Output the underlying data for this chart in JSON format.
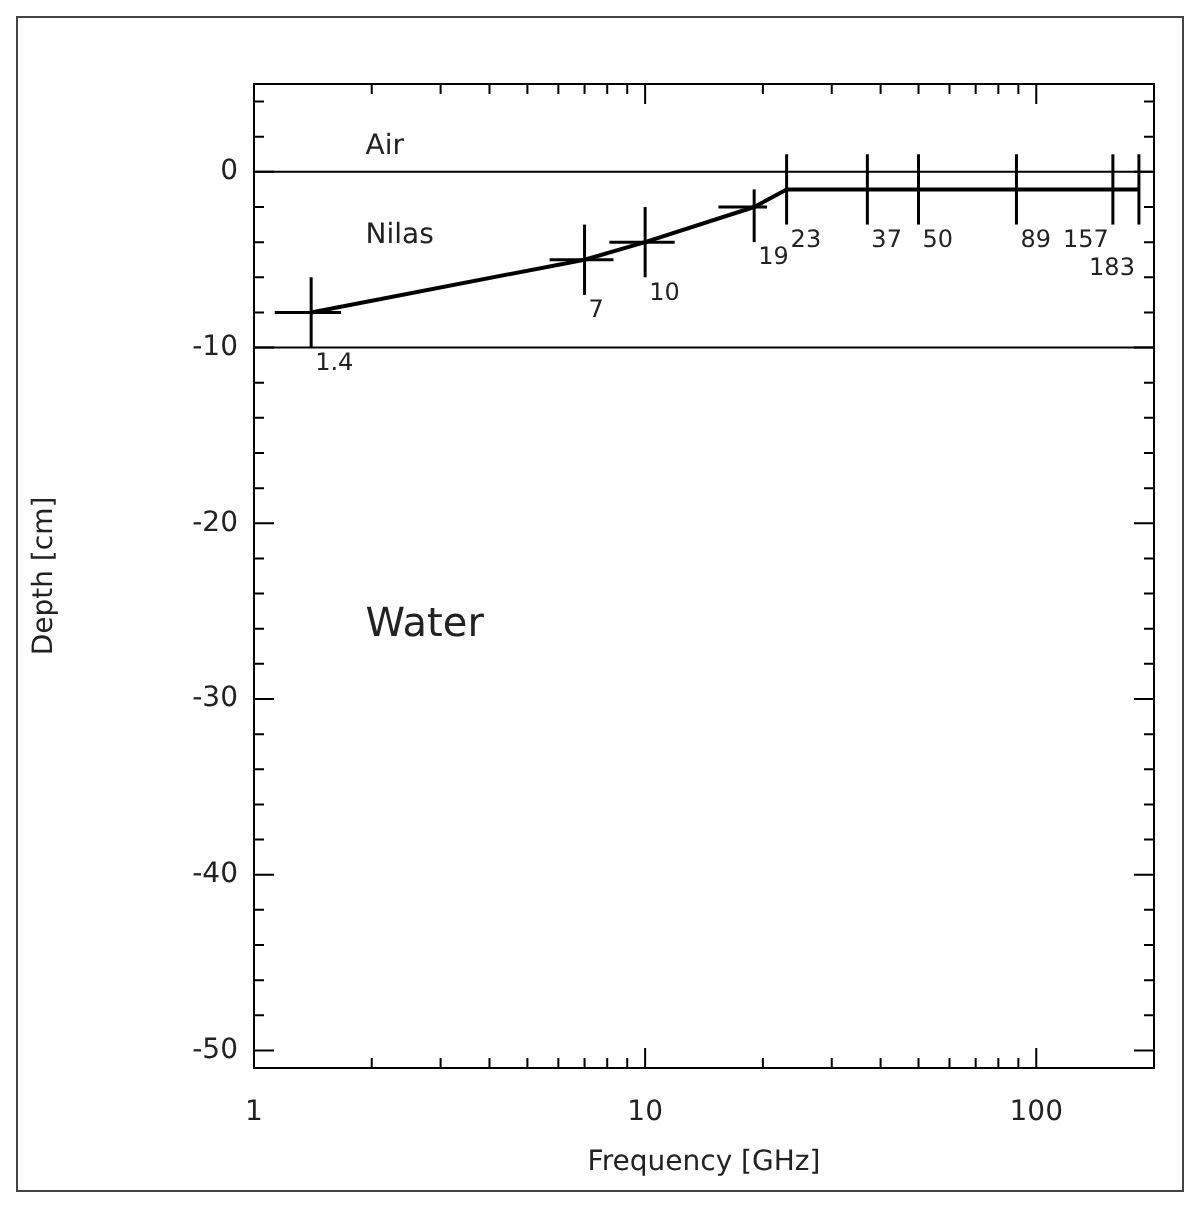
{
  "chart_data": {
    "type": "line",
    "xlabel": "Frequency [GHz]",
    "ylabel": "Depth [cm]",
    "log": "x",
    "grid": false,
    "legend": false,
    "marker": "none",
    "line_style": "solid",
    "x": [
      1.4,
      7,
      10,
      19,
      23,
      37,
      50,
      89,
      157,
      183
    ],
    "series": [
      {
        "color": "#000000",
        "values": [
          -8,
          -5,
          -4,
          -2,
          -1,
          -1,
          -1,
          -1,
          -1,
          -1
        ],
        "errors": [
          [
            -10,
            -6
          ],
          [
            -7,
            -3
          ],
          [
            -6,
            -2
          ],
          [
            -4,
            -1
          ],
          [
            -3,
            1
          ],
          [
            -3,
            1
          ],
          [
            -3,
            1
          ],
          [
            -3,
            1
          ],
          [
            -3,
            1
          ],
          [
            -3,
            1
          ]
        ],
        "xerrors": [
          [
            1.13,
            1.67
          ],
          [
            5.7,
            8.3
          ],
          [
            8.1,
            11.9
          ],
          [
            15.4,
            20.5
          ],
          null,
          null,
          null,
          null,
          null,
          null
        ]
      }
    ],
    "xlim": [
      1,
      200
    ],
    "ylim": [
      -51,
      5
    ],
    "xticks": [
      1,
      10,
      100,
      {
        "value": 2,
        "label": null
      },
      {
        "value": 3,
        "label": null
      },
      {
        "value": 4,
        "label": null
      },
      {
        "value": 5,
        "label": null
      },
      {
        "value": 6,
        "label": null
      },
      {
        "value": 7,
        "label": null
      },
      {
        "value": 8,
        "label": null
      },
      {
        "value": 9,
        "label": null
      },
      {
        "value": 20,
        "label": null
      },
      {
        "value": 30,
        "label": null
      },
      {
        "value": 40,
        "label": null
      },
      {
        "value": 50,
        "label": null
      },
      {
        "value": 60,
        "label": null
      },
      {
        "value": 70,
        "label": null
      },
      {
        "value": 80,
        "label": null
      },
      {
        "value": 90,
        "label": null
      }
    ],
    "yticks": [
      -50,
      -40,
      -30,
      -20,
      -10,
      0,
      {
        "value": -48,
        "label": null
      },
      {
        "value": -46,
        "label": null
      },
      {
        "value": -44,
        "label": null
      },
      {
        "value": -42,
        "label": null
      },
      {
        "value": -38,
        "label": null
      },
      {
        "value": -36,
        "label": null
      },
      {
        "value": -34,
        "label": null
      },
      {
        "value": -32,
        "label": null
      },
      {
        "value": -28,
        "label": null
      },
      {
        "value": -26,
        "label": null
      },
      {
        "value": -24,
        "label": null
      },
      {
        "value": -22,
        "label": null
      },
      {
        "value": -18,
        "label": null
      },
      {
        "value": -16,
        "label": null
      },
      {
        "value": -14,
        "label": null
      },
      {
        "value": -12,
        "label": null
      },
      {
        "value": -8,
        "label": null
      },
      {
        "value": -6,
        "label": null
      },
      {
        "value": -4,
        "label": null
      },
      {
        "value": -2,
        "label": null
      },
      {
        "value": 2,
        "label": null
      },
      {
        "value": 4,
        "label": null
      }
    ],
    "ref_lines": [
      {
        "axis": "y",
        "value": 0,
        "color": "#000000"
      },
      {
        "axis": "y",
        "value": -10,
        "color": "#000000"
      }
    ],
    "annotations": [
      "Air",
      "Nilas",
      "Water",
      {
        "text": "1.4",
        "x": 1.4,
        "y": -10
      },
      {
        "text": "7",
        "x": 7,
        "y": -7
      },
      {
        "text": "10",
        "x": 10,
        "y": -6
      },
      {
        "text": "19",
        "x": 19,
        "y": -4
      },
      {
        "text": "23",
        "x": 23,
        "y": -3
      },
      {
        "text": "37",
        "x": 37,
        "y": -3
      },
      {
        "text": "50",
        "x": 50,
        "y": -3
      },
      {
        "text": "89",
        "x": 89,
        "y": -3
      },
      {
        "text": "157",
        "x": 157,
        "y": -3
      },
      {
        "text": "183",
        "x": 183,
        "y": -3
      }
    ]
  }
}
